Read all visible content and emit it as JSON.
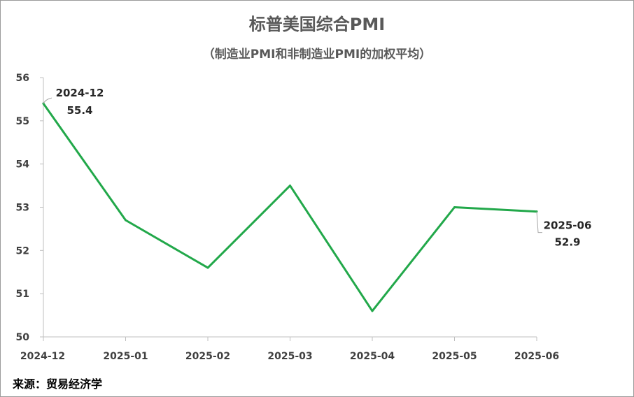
{
  "chart_data": {
    "type": "line",
    "title": "标普美国综合PMI",
    "subtitle": "（制造业PMI和非制造业PMI的加权平均）",
    "categories": [
      "2024-12",
      "2025-01",
      "2025-02",
      "2025-03",
      "2025-04",
      "2025-05",
      "2025-06"
    ],
    "series": [
      {
        "values": [
          55.4,
          52.7,
          51.6,
          53.5,
          50.6,
          53.0,
          52.9
        ],
        "color": "#22a84a"
      }
    ],
    "ylim": [
      50,
      56
    ],
    "yticks": [
      "50",
      "51",
      "52",
      "53",
      "54",
      "55",
      "56"
    ],
    "grid": false,
    "annotations": [
      {
        "category": "2024-12",
        "date_text": "2024-12",
        "value_text": "55.4"
      },
      {
        "category": "2025-06",
        "date_text": "2025-06",
        "value_text": "52.9"
      }
    ]
  },
  "source": "来源：贸易经济学"
}
